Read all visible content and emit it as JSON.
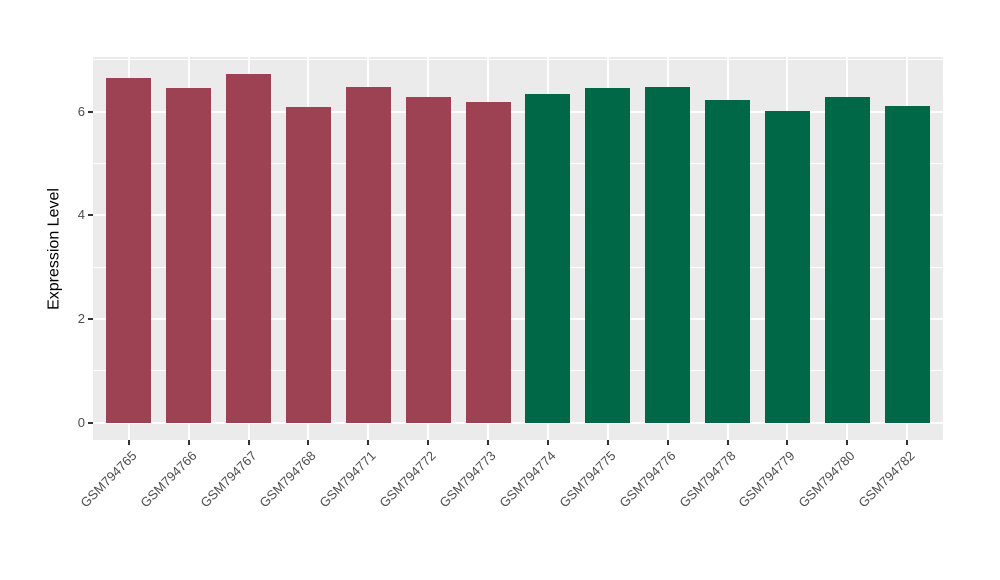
{
  "figure": {
    "page_background": "#FFFFFF"
  },
  "chart_data": {
    "type": "bar",
    "title": "",
    "xlabel": "",
    "ylabel": "Expression Level",
    "categories": [
      "GSM794765",
      "GSM794766",
      "GSM794767",
      "GSM794768",
      "GSM794771",
      "GSM794772",
      "GSM794773",
      "GSM794774",
      "GSM794775",
      "GSM794776",
      "GSM794778",
      "GSM794779",
      "GSM794780",
      "GSM794782"
    ],
    "values": [
      6.66,
      6.46,
      6.73,
      6.09,
      6.48,
      6.28,
      6.19,
      6.34,
      6.45,
      6.47,
      6.23,
      6.02,
      6.28,
      6.12
    ],
    "groups": [
      "group1",
      "group1",
      "group1",
      "group1",
      "group1",
      "group1",
      "group1",
      "group2",
      "group2",
      "group2",
      "group2",
      "group2",
      "group2",
      "group2"
    ],
    "group_colors": {
      "group1": "#9C4252",
      "group2": "#006847"
    },
    "ylim": [
      -0.34,
      7.07
    ],
    "yticks_major": [
      0,
      2,
      4,
      6
    ],
    "yticks_minor": [
      1,
      3,
      5,
      7
    ],
    "x_tick_rotation_deg": 45,
    "legend": "none",
    "panel_background": "#EBEBEB",
    "gridline_color": "#FFFFFF",
    "axis_text_color": "#4D4D4D"
  }
}
